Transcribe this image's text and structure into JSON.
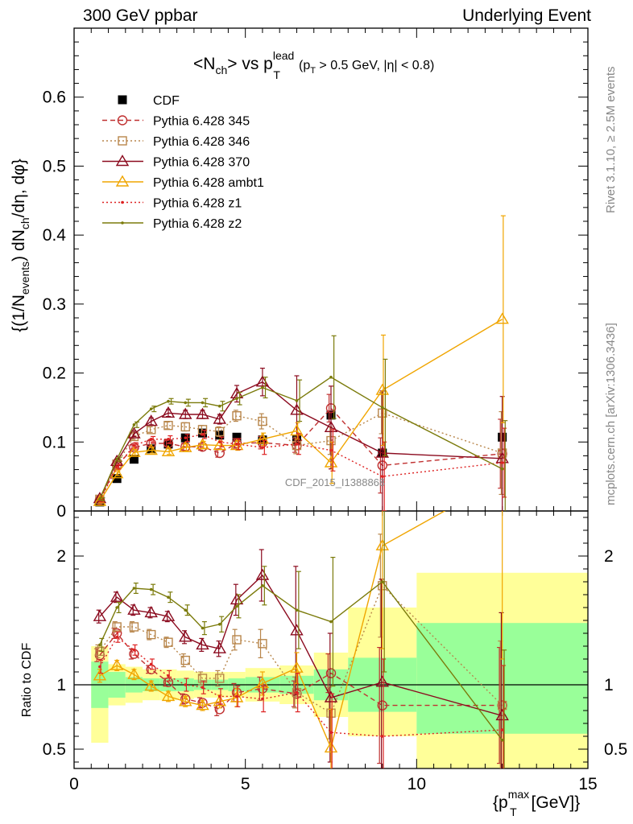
{
  "header": {
    "left": "300 GeV ppbar",
    "right": "Underlying Event"
  },
  "side_labels": {
    "rivet": "Rivet 3.1.10, ≥ 2.5M events",
    "mcplots": "mcplots.cern.ch [arXiv:1306.3436]"
  },
  "chart_data": [
    {
      "type": "scatter",
      "title": "<N_ch> vs p_T^lead",
      "title_cut": "(p_T > 0.5 GeV, |η| < 0.8)",
      "ylabel": "{(1/N_events) dN_ch/dη, dφ}",
      "xlabel": "{p_T^max [GeV]}",
      "xlim": [
        0,
        15
      ],
      "ylim": [
        0,
        0.7
      ],
      "yticks": [
        0,
        0.1,
        0.2,
        0.3,
        0.4,
        0.5,
        0.6
      ],
      "ytick_labels": [
        "0",
        "0.1",
        "0.2",
        "0.3",
        "0.4",
        "0.5",
        "0.6"
      ],
      "watermark": "CDF_2015_I1388868",
      "legend_position": "top-left",
      "x": [
        0.75,
        1.25,
        1.75,
        2.25,
        2.75,
        3.25,
        3.75,
        4.25,
        4.75,
        5.5,
        6.5,
        7.5,
        9.0,
        12.5
      ],
      "series": [
        {
          "name": "CDF",
          "color": "#000000",
          "marker": "square-filled",
          "line": "none",
          "values": [
            0.013,
            0.047,
            0.075,
            0.09,
            0.097,
            0.106,
            0.113,
            0.11,
            0.107,
            0.103,
            0.103,
            0.139,
            0.084,
            0.107
          ]
        },
        {
          "name": "Pythia 6.428 345",
          "color": "#c03030",
          "marker": "circle",
          "line": "dashed",
          "values": [
            0.016,
            0.066,
            0.092,
            0.098,
            0.098,
            0.093,
            0.093,
            0.084,
            0.098,
            0.099,
            0.095,
            0.149,
            0.066,
            0.083
          ],
          "errors": [
            0.002,
            0.003,
            0.004,
            0.004,
            0.004,
            0.005,
            0.005,
            0.006,
            0.007,
            0.009,
            0.01,
            0.02,
            0.04,
            0.05
          ]
        },
        {
          "name": "Pythia 6.428 346",
          "color": "#b8864b",
          "marker": "square",
          "line": "dotted",
          "values": [
            0.017,
            0.068,
            0.108,
            0.118,
            0.124,
            0.122,
            0.118,
            0.115,
            0.138,
            0.13,
            0.095,
            0.102,
            0.142,
            0.084
          ],
          "errors": [
            0.002,
            0.003,
            0.004,
            0.004,
            0.005,
            0.006,
            0.006,
            0.007,
            0.008,
            0.011,
            0.012,
            0.02,
            0.03,
            0.06
          ]
        },
        {
          "name": "Pythia 6.428 370",
          "color": "#8b0a1e",
          "marker": "triangle",
          "line": "solid",
          "values": [
            0.018,
            0.072,
            0.112,
            0.13,
            0.142,
            0.14,
            0.14,
            0.133,
            0.17,
            0.187,
            0.146,
            0.121,
            0.084,
            0.076
          ],
          "errors": [
            0.002,
            0.003,
            0.004,
            0.005,
            0.005,
            0.006,
            0.006,
            0.007,
            0.012,
            0.02,
            0.05,
            0.06,
            0.09,
            0.09
          ]
        },
        {
          "name": "Pythia 6.428 ambt1",
          "color": "#f0a500",
          "marker": "triangle",
          "line": "solid",
          "values": [
            0.014,
            0.054,
            0.085,
            0.088,
            0.086,
            0.092,
            0.096,
            0.095,
            0.095,
            0.104,
            0.116,
            0.07,
            0.175,
            0.278
          ],
          "errors": [
            0.002,
            0.003,
            0.004,
            0.004,
            0.004,
            0.005,
            0.005,
            0.006,
            0.007,
            0.009,
            0.012,
            0.03,
            0.08,
            0.15
          ]
        },
        {
          "name": "Pythia 6.428 z1",
          "color": "#dd2222",
          "marker": "dot",
          "line": "dotted",
          "values": [
            0.015,
            0.064,
            0.095,
            0.104,
            0.104,
            0.106,
            0.111,
            0.1,
            0.097,
            0.092,
            0.097,
            0.088,
            0.05,
            0.07
          ],
          "errors": [
            0.002,
            0.003,
            0.004,
            0.004,
            0.005,
            0.005,
            0.006,
            0.007,
            0.008,
            0.01,
            0.015,
            0.03,
            0.05,
            0.05
          ]
        },
        {
          "name": "Pythia 6.428 z2",
          "color": "#7b7b0b",
          "marker": "dot",
          "line": "solid",
          "values": [
            0.017,
            0.075,
            0.125,
            0.148,
            0.159,
            0.157,
            0.157,
            0.152,
            0.163,
            0.179,
            0.16,
            0.194,
            0.15,
            0.061
          ],
          "errors": [
            0.002,
            0.003,
            0.004,
            0.004,
            0.004,
            0.005,
            0.006,
            0.007,
            0.009,
            0.015,
            0.03,
            0.06,
            0.07,
            0.07
          ]
        }
      ]
    },
    {
      "type": "line",
      "ylabel": "Ratio to CDF",
      "xlabel": "{p_T^max [GeV]}",
      "xlim": [
        0,
        15
      ],
      "ylim": [
        0.35,
        2.35
      ],
      "yticks": [
        0.5,
        1,
        2
      ],
      "ytick_labels": [
        "0.5",
        "1",
        "2"
      ],
      "xticks": [
        0,
        5,
        10,
        15
      ],
      "xtick_labels": [
        "0",
        "5",
        "10",
        "15"
      ],
      "bins": [
        [
          0.5,
          1.0
        ],
        [
          1.0,
          1.5
        ],
        [
          1.5,
          2.0
        ],
        [
          2.0,
          2.5
        ],
        [
          2.5,
          3.0
        ],
        [
          3.0,
          3.5
        ],
        [
          3.5,
          4.0
        ],
        [
          4.0,
          4.5
        ],
        [
          4.5,
          5.0
        ],
        [
          5.0,
          6.0
        ],
        [
          6.0,
          7.0
        ],
        [
          7.0,
          8.0
        ],
        [
          8.0,
          10.0
        ],
        [
          10.0,
          15.0
        ]
      ],
      "band_1sigma": [
        [
          0.82,
          1.18
        ],
        [
          0.9,
          1.1
        ],
        [
          0.94,
          1.06
        ],
        [
          0.95,
          1.05
        ],
        [
          0.95,
          1.05
        ],
        [
          0.95,
          1.05
        ],
        [
          0.96,
          1.04
        ],
        [
          0.96,
          1.04
        ],
        [
          0.95,
          1.05
        ],
        [
          0.94,
          1.06
        ],
        [
          0.93,
          1.07
        ],
        [
          0.88,
          1.12
        ],
        [
          0.79,
          1.21
        ],
        [
          0.62,
          1.48
        ]
      ],
      "band_2sigma": [
        [
          0.55,
          1.3
        ],
        [
          0.84,
          1.16
        ],
        [
          0.86,
          1.14
        ],
        [
          0.88,
          1.12
        ],
        [
          0.88,
          1.12
        ],
        [
          0.89,
          1.11
        ],
        [
          0.9,
          1.1
        ],
        [
          0.9,
          1.1
        ],
        [
          0.9,
          1.1
        ],
        [
          0.87,
          1.13
        ],
        [
          0.85,
          1.15
        ],
        [
          0.75,
          1.25
        ],
        [
          0.6,
          1.6
        ],
        [
          0.35,
          1.87
        ]
      ],
      "band_colors": {
        "inner": "#99ff99",
        "outer": "#ffff99"
      },
      "x": [
        0.75,
        1.25,
        1.75,
        2.25,
        2.75,
        3.25,
        3.75,
        4.25,
        4.75,
        5.5,
        6.5,
        7.5,
        9.0,
        12.5
      ],
      "series": [
        {
          "name": "Pythia 6.428 345",
          "color": "#c03030",
          "marker": "circle",
          "line": "dashed",
          "values": [
            1.23,
            1.4,
            1.24,
            1.12,
            1.02,
            0.89,
            0.86,
            0.81,
            0.94,
            0.97,
            0.93,
            1.09,
            0.84,
            0.84
          ],
          "errors": [
            0.05,
            0.04,
            0.04,
            0.03,
            0.03,
            0.04,
            0.04,
            0.05,
            0.07,
            0.09,
            0.1,
            0.15,
            0.45,
            0.45
          ]
        },
        {
          "name": "Pythia 6.428 346",
          "color": "#b8864b",
          "marker": "square",
          "line": "dotted",
          "values": [
            1.26,
            1.45,
            1.45,
            1.39,
            1.33,
            1.19,
            1.05,
            1.05,
            1.35,
            1.32,
            0.94,
            0.78,
            1.77,
            0.84
          ],
          "errors": [
            0.05,
            0.04,
            0.04,
            0.04,
            0.04,
            0.05,
            0.05,
            0.06,
            0.08,
            0.11,
            0.12,
            0.2,
            0.4,
            0.5
          ]
        },
        {
          "name": "Pythia 6.428 370",
          "color": "#8b0a1e",
          "marker": "triangle",
          "line": "solid",
          "values": [
            1.53,
            1.68,
            1.58,
            1.56,
            1.53,
            1.37,
            1.31,
            1.28,
            1.66,
            1.85,
            1.42,
            0.9,
            1.02,
            0.76
          ],
          "errors": [
            0.05,
            0.04,
            0.04,
            0.04,
            0.04,
            0.05,
            0.05,
            0.06,
            0.12,
            0.2,
            0.5,
            0.5,
            0.8,
            0.8
          ]
        },
        {
          "name": "Pythia 6.428 ambt1",
          "color": "#f0a500",
          "marker": "triangle",
          "line": "solid",
          "values": [
            1.07,
            1.15,
            1.08,
            0.99,
            0.91,
            0.87,
            0.84,
            0.87,
            0.9,
            1.01,
            1.13,
            0.51,
            2.08,
            2.6
          ],
          "errors": [
            0.05,
            0.04,
            0.04,
            0.04,
            0.04,
            0.04,
            0.04,
            0.05,
            0.07,
            0.09,
            0.12,
            0.3,
            0.8,
            1.4
          ]
        },
        {
          "name": "Pythia 6.428 z1",
          "color": "#dd2222",
          "marker": "dot",
          "line": "dotted",
          "values": [
            1.14,
            1.37,
            1.27,
            1.16,
            1.07,
            1.0,
            0.98,
            0.91,
            0.91,
            0.89,
            0.94,
            0.63,
            0.6,
            0.65
          ],
          "errors": [
            0.05,
            0.04,
            0.04,
            0.04,
            0.04,
            0.05,
            0.05,
            0.06,
            0.08,
            0.1,
            0.15,
            0.3,
            0.6,
            0.5
          ]
        },
        {
          "name": "Pythia 6.428 z2",
          "color": "#7b7b0b",
          "marker": "dot",
          "line": "solid",
          "values": [
            1.31,
            1.6,
            1.75,
            1.74,
            1.68,
            1.58,
            1.44,
            1.47,
            1.61,
            1.77,
            1.58,
            1.49,
            1.8,
            0.57
          ],
          "errors": [
            0.05,
            0.04,
            0.04,
            0.04,
            0.04,
            0.04,
            0.05,
            0.06,
            0.09,
            0.15,
            0.3,
            0.5,
            0.7,
            0.7
          ]
        }
      ]
    }
  ]
}
